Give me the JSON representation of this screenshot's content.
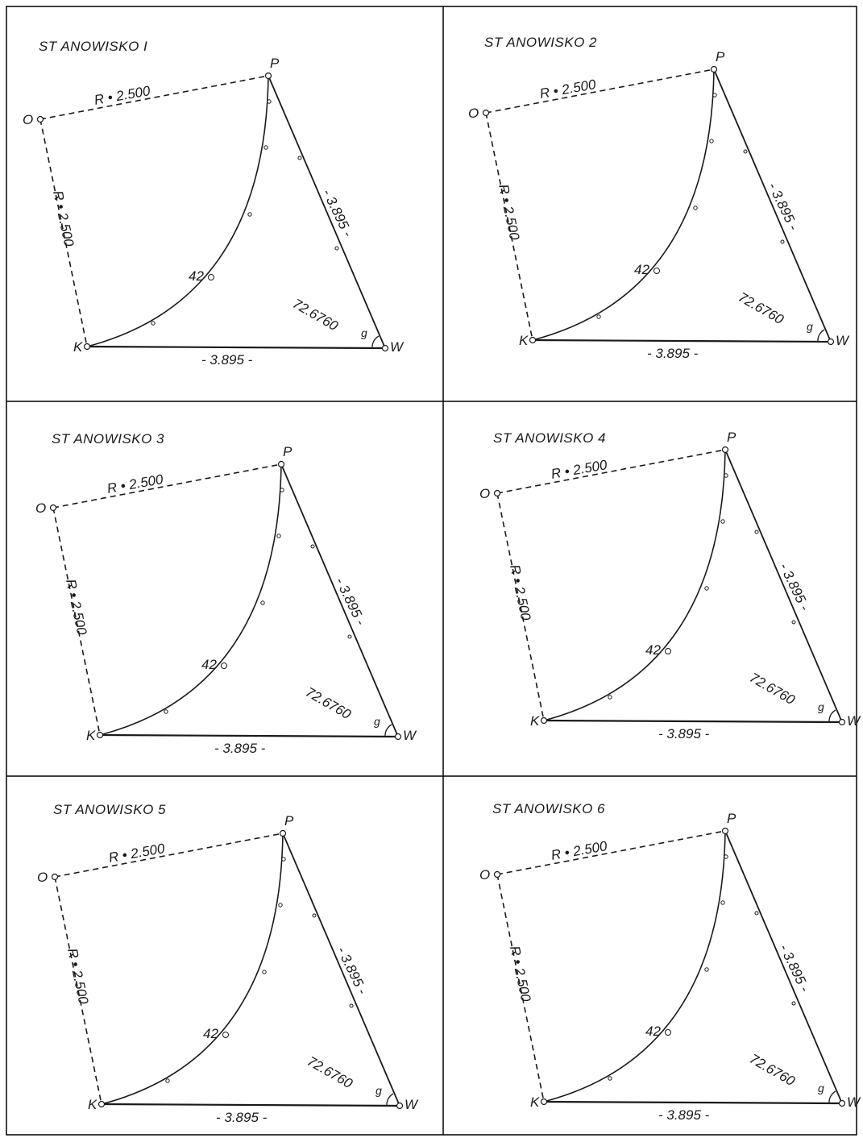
{
  "panels": [
    {
      "title": "ST ANOWISKO I"
    },
    {
      "title": "ST ANOWISKO 2"
    },
    {
      "title": "ST ANOWISKO 3"
    },
    {
      "title": "ST ANOWISKO 4"
    },
    {
      "title": "ST ANOWISKO 5"
    },
    {
      "title": "ST ANOWISKO 6"
    }
  ],
  "labels": {
    "point_o": "O",
    "point_p": "P",
    "point_k": "K",
    "point_w": "W",
    "radius_top": "R • 2.500",
    "radius_left": "R • 2.500",
    "side_pw": "- 3.895 -",
    "side_kw": "- 3.895 -",
    "arc_station": "42",
    "angle": "72.6760",
    "angle_unit": "g"
  },
  "colors": {
    "ink": "#1a1a1a",
    "grid": "#000000",
    "paper": "#ffffff"
  }
}
